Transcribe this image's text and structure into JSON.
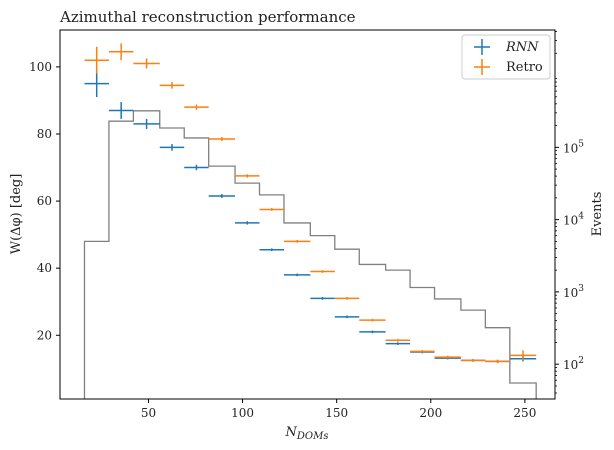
{
  "chart_data": {
    "type": "scatter",
    "title": "Azimuthal reconstruction performance",
    "xlabel": "N_DOMs",
    "ylabel": "W(Δφ) [deg]",
    "y2label": "Events",
    "xlim": [
      3,
      266
    ],
    "ylim": [
      1,
      111
    ],
    "y2lim": [
      33,
      4200000
    ],
    "y2scale": "log",
    "xticks": [
      50,
      100,
      150,
      200,
      250
    ],
    "yticks": [
      20,
      40,
      60,
      80,
      100
    ],
    "y2ticks": [
      {
        "value": 100,
        "label": "10",
        "exp": "2"
      },
      {
        "value": 1000,
        "label": "10",
        "exp": "3"
      },
      {
        "value": 10000,
        "label": "10",
        "exp": "4"
      },
      {
        "value": 100000,
        "label": "10",
        "exp": "5"
      }
    ],
    "legend_position": "top-right",
    "colors": {
      "rnn": "#1f77b4",
      "retro": "#ff7f0e",
      "hist": "#808080"
    },
    "bin_edges": [
      16,
      29,
      42,
      56,
      69,
      82,
      96,
      109,
      122,
      136,
      149,
      162,
      176,
      189,
      202,
      216,
      229,
      242,
      256
    ],
    "series": [
      {
        "name": "RNN",
        "values": [
          95,
          87,
          83,
          76,
          70,
          61.5,
          53.5,
          45.5,
          38,
          31,
          25.5,
          21,
          17.5,
          15,
          13.2,
          12.5,
          12.2,
          13
        ],
        "yerr": [
          4,
          2.5,
          1.5,
          1,
          0.8,
          0.6,
          0.5,
          0.4,
          0.4,
          0.4,
          0.4,
          0.4,
          0.4,
          0.4,
          0.4,
          0.4,
          0.5,
          0.8
        ]
      },
      {
        "name": "Retro",
        "values": [
          102,
          104.5,
          101,
          94.5,
          88,
          78.5,
          67.5,
          57.5,
          48,
          39,
          31,
          24.5,
          18.5,
          15.2,
          13.5,
          12.5,
          12.2,
          14
        ],
        "yerr": [
          4,
          2.5,
          1.5,
          1,
          0.8,
          0.6,
          0.5,
          0.4,
          0.4,
          0.4,
          0.4,
          0.4,
          0.4,
          0.4,
          0.4,
          0.4,
          0.5,
          1.5
        ]
      }
    ],
    "histogram": {
      "name": "Events",
      "values": [
        5000,
        230000,
        320000,
        185000,
        135000,
        55000,
        32000,
        22000,
        9000,
        6000,
        3900,
        2400,
        2000,
        1150,
        800,
        560,
        320,
        55
      ]
    }
  }
}
